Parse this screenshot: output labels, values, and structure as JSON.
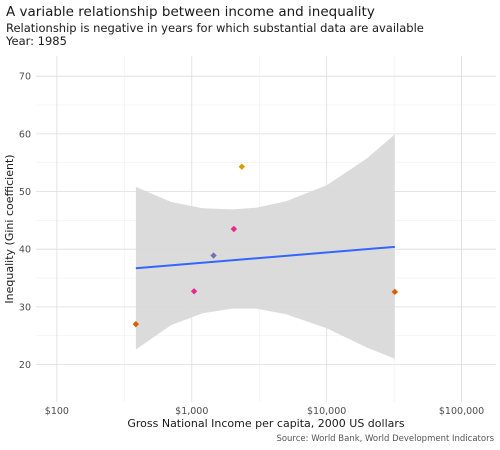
{
  "chart_data": {
    "type": "scatter",
    "title": "A variable relationship between income and inequality",
    "subtitle": "Relationship is negative in years for which substantial data are available",
    "year_label": "Year: 1985",
    "xlabel": "Gross National Income per capita, 2000 US dollars",
    "ylabel": "Inequality (Gini coefficient)",
    "caption": "Source: World Bank, World Development Indicators",
    "x_scale": "log10",
    "xlim": [
      70,
      180000
    ],
    "ylim": [
      13.5,
      73.5
    ],
    "x_ticks": [
      100,
      1000,
      10000,
      100000
    ],
    "x_tick_labels": [
      "$100",
      "$1,000",
      "$10,000",
      "$100,000"
    ],
    "y_ticks": [
      20,
      30,
      40,
      50,
      60,
      70
    ],
    "y_tick_labels": [
      "20",
      "30",
      "40",
      "50",
      "60",
      "70"
    ],
    "grid": true,
    "legend": "none",
    "points": [
      {
        "x": 385,
        "y": 27.0,
        "color": "#d95f02"
      },
      {
        "x": 1040,
        "y": 32.7,
        "color": "#e7298a"
      },
      {
        "x": 1450,
        "y": 38.9,
        "color": "#7570b3"
      },
      {
        "x": 2050,
        "y": 43.5,
        "color": "#e7298a"
      },
      {
        "x": 2350,
        "y": 54.3,
        "color": "#d69d00"
      },
      {
        "x": 32000,
        "y": 32.6,
        "color": "#d95f02"
      }
    ],
    "fit": {
      "type": "linear",
      "color": "#3366ff",
      "x_range": [
        385,
        32000
      ],
      "y_start": 36.7,
      "y_end": 40.4
    },
    "band": {
      "color": "#d9d9d9",
      "x": [
        385,
        700,
        1200,
        2000,
        3000,
        5000,
        10000,
        20000,
        32000
      ],
      "lower": [
        22.6,
        26.8,
        28.9,
        29.7,
        29.7,
        28.7,
        26.3,
        22.9,
        21.0
      ],
      "upper": [
        50.8,
        48.2,
        47.1,
        46.9,
        47.2,
        48.3,
        51.1,
        55.8,
        59.9
      ]
    }
  }
}
